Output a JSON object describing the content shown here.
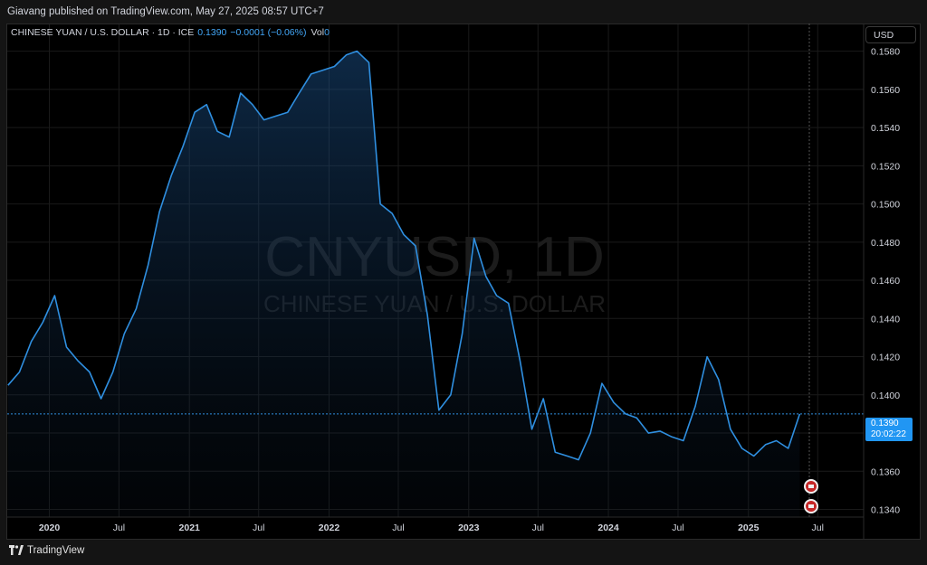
{
  "header": {
    "publisher": "Giavang published on TradingView.com, May 27, 2025 08:57 UTC+7"
  },
  "legend": {
    "symbol": "CHINESE YUAN / U.S. DOLLAR · 1D · ICE",
    "price": "0.1390",
    "change": "−0.0001 (−0.06%)",
    "vol_label": "Vol",
    "vol_value": "0"
  },
  "currency": "USD",
  "watermark": {
    "ticker": "CNYUSD, 1D",
    "name": "CHINESE YUAN / U.S. DOLLAR"
  },
  "price_tag": {
    "price": "0.1390",
    "countdown": "20:02:22"
  },
  "footer": {
    "brand": "TradingView",
    "logo_icon": "tradingview-logo-icon"
  },
  "events": [
    {
      "icon": "us-flag-event-icon",
      "date": "2025-05-09"
    },
    {
      "icon": "us-flag-event-icon",
      "date": "2025-05-09"
    }
  ],
  "colors": {
    "line": "#2f8fe0",
    "price_tag": "#2196f3",
    "event": "#c62828"
  },
  "chart_data": {
    "type": "area",
    "grid": true,
    "x_ticks": [
      {
        "date": "2020-01-01",
        "label": "2020",
        "bold": true
      },
      {
        "date": "2020-07-01",
        "label": "Jul",
        "bold": false
      },
      {
        "date": "2021-01-01",
        "label": "2021",
        "bold": true
      },
      {
        "date": "2021-07-01",
        "label": "Jul",
        "bold": false
      },
      {
        "date": "2022-01-01",
        "label": "2022",
        "bold": true
      },
      {
        "date": "2022-07-01",
        "label": "Jul",
        "bold": false
      },
      {
        "date": "2023-01-01",
        "label": "2023",
        "bold": true
      },
      {
        "date": "2023-07-01",
        "label": "Jul",
        "bold": false
      },
      {
        "date": "2024-01-01",
        "label": "2024",
        "bold": true
      },
      {
        "date": "2024-07-01",
        "label": "Jul",
        "bold": false
      },
      {
        "date": "2025-01-01",
        "label": "2025",
        "bold": true
      },
      {
        "date": "2025-07-01",
        "label": "Jul",
        "bold": false
      }
    ],
    "y_ticks": [
      "0.1340",
      "0.1360",
      "0.1380",
      "0.1400",
      "0.1420",
      "0.1440",
      "0.1460",
      "0.1480",
      "0.1500",
      "0.1520",
      "0.1540",
      "0.1560",
      "0.1580"
    ],
    "ylim": [
      0.1336,
      0.1594
    ],
    "xlim": [
      "2019-09-13",
      "2025-10-29"
    ],
    "last_value": 0.139,
    "series": [
      {
        "x": [
          "2019-09-15",
          "2019-10-15",
          "2019-11-15",
          "2019-12-15",
          "2020-01-15",
          "2020-02-15",
          "2020-03-15",
          "2020-04-15",
          "2020-05-15",
          "2020-06-15",
          "2020-07-15",
          "2020-08-15",
          "2020-09-15",
          "2020-10-15",
          "2020-11-15",
          "2020-12-15",
          "2021-01-15",
          "2021-02-15",
          "2021-03-15",
          "2021-04-15",
          "2021-05-15",
          "2021-06-15",
          "2021-07-15",
          "2021-08-15",
          "2021-09-15",
          "2021-10-15",
          "2021-11-15",
          "2021-12-15",
          "2022-01-15",
          "2022-02-15",
          "2022-03-15",
          "2022-04-15",
          "2022-05-15",
          "2022-06-15",
          "2022-07-15",
          "2022-08-15",
          "2022-09-15",
          "2022-10-15",
          "2022-11-15",
          "2022-12-15",
          "2023-01-15",
          "2023-02-15",
          "2023-03-15",
          "2023-04-15",
          "2023-05-15",
          "2023-06-15",
          "2023-07-15",
          "2023-08-15",
          "2023-09-15",
          "2023-10-15",
          "2023-11-15",
          "2023-12-15",
          "2024-01-15",
          "2024-02-15",
          "2024-03-15",
          "2024-04-15",
          "2024-05-15",
          "2024-06-15",
          "2024-07-15",
          "2024-08-15",
          "2024-09-15",
          "2024-10-15",
          "2024-11-15",
          "2024-12-15",
          "2025-01-15",
          "2025-02-15",
          "2025-03-15",
          "2025-04-15",
          "2025-05-15"
        ],
        "values": [
          0.1405,
          0.1412,
          0.1428,
          0.1438,
          0.1452,
          0.1425,
          0.1418,
          0.1412,
          0.1398,
          0.1412,
          0.1432,
          0.1445,
          0.1468,
          0.1496,
          0.1515,
          0.153,
          0.1548,
          0.1552,
          0.1538,
          0.1535,
          0.1558,
          0.1552,
          0.1544,
          0.1546,
          0.1548,
          0.1558,
          0.1568,
          0.157,
          0.1572,
          0.1578,
          0.158,
          0.1574,
          0.15,
          0.1495,
          0.1484,
          0.1478,
          0.1442,
          0.1392,
          0.14,
          0.1432,
          0.1482,
          0.1462,
          0.1452,
          0.1448,
          0.1418,
          0.1382,
          0.1398,
          0.137,
          0.1368,
          0.1366,
          0.138,
          0.1406,
          0.1396,
          0.139,
          0.1388,
          0.138,
          0.1381,
          0.1378,
          0.1376,
          0.1394,
          0.142,
          0.1408,
          0.1382,
          0.1372,
          0.1368,
          0.1374,
          0.1376,
          0.1372,
          0.139
        ]
      }
    ]
  }
}
